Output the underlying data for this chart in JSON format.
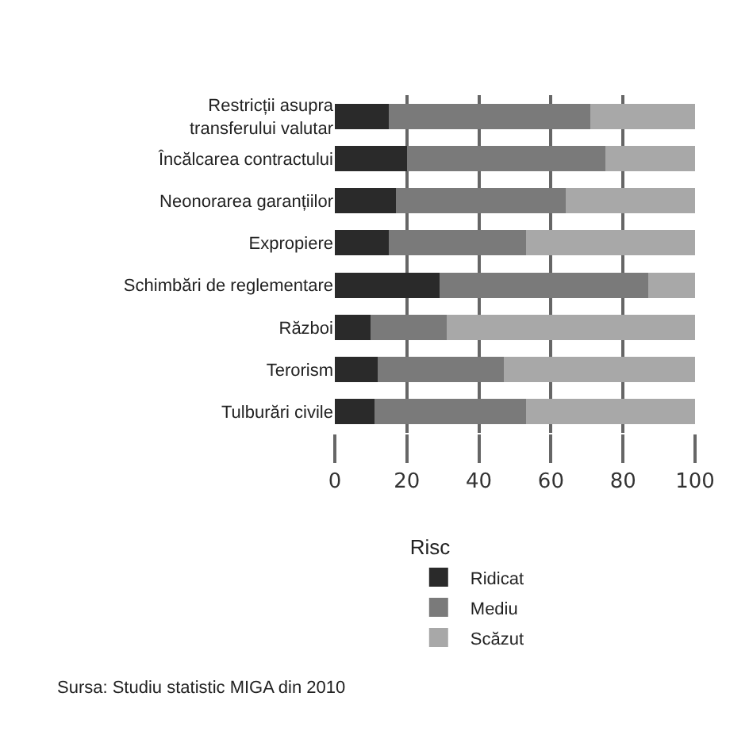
{
  "chart_data": {
    "type": "bar",
    "orientation": "horizontal",
    "stacked": true,
    "categories": [
      "Restricții asupra\ntransferului valutar",
      "Încălcarea contractului",
      "Neonorarea garanțiilor",
      "Expropiere",
      "Schimbări de reglementare",
      "Război",
      "Terorism",
      "Tulburări civile"
    ],
    "series": [
      {
        "name": "Ridicat",
        "color": "#2a2a2a",
        "values": [
          15,
          20,
          17,
          15,
          29,
          10,
          12,
          11
        ]
      },
      {
        "name": "Mediu",
        "color": "#7a7a7a",
        "values": [
          56,
          55,
          47,
          38,
          58,
          21,
          35,
          42
        ]
      },
      {
        "name": "Scăzut",
        "color": "#a8a8a8",
        "values": [
          29,
          25,
          36,
          47,
          13,
          69,
          53,
          47
        ]
      }
    ],
    "xlim": [
      0,
      100
    ],
    "xticks": [
      0,
      20,
      40,
      60,
      80,
      100
    ],
    "grid": "x",
    "legend": "bottom",
    "legend_title": "Risc",
    "annotations": [
      "Sursa: Studiu statistic MIGA din 2010"
    ]
  }
}
